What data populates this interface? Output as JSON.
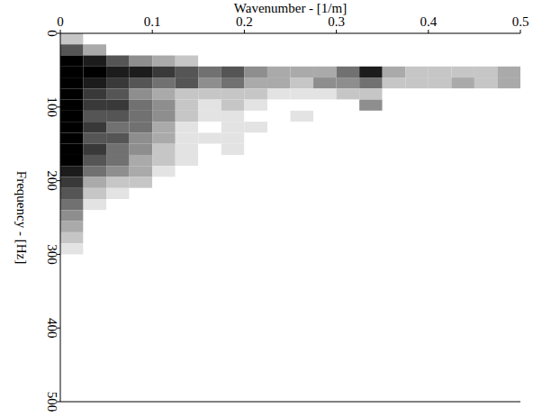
{
  "chart_data": {
    "type": "heatmap",
    "x_label": "Wavenumber - [1/m]",
    "y_label": "Frequency - [Hz]",
    "xlim": [
      0,
      0.5
    ],
    "ylim": [
      0,
      500
    ],
    "xticks": [
      0,
      0.1,
      0.2,
      0.3,
      0.4,
      0.5
    ],
    "yticks": [
      0,
      100,
      200,
      300,
      400,
      500
    ],
    "zlim": [
      0,
      9
    ],
    "x_edges": [
      0,
      0.025,
      0.05,
      0.075,
      0.1,
      0.125,
      0.15,
      0.175,
      0.2,
      0.225,
      0.25,
      0.275,
      0.3,
      0.325,
      0.35,
      0.375,
      0.4,
      0.425,
      0.45,
      0.475,
      0.5
    ],
    "y_edges": [
      0,
      15,
      30,
      45,
      60,
      75,
      90,
      105,
      120,
      135,
      150,
      165,
      180,
      195,
      210,
      225,
      240,
      255,
      270,
      285,
      300
    ],
    "z": [
      [
        2,
        0,
        0,
        0,
        0,
        0,
        0,
        0,
        0,
        0,
        0,
        0,
        0,
        0,
        0,
        0,
        0,
        0,
        0,
        0
      ],
      [
        6,
        3,
        0,
        0,
        0,
        0,
        0,
        0,
        0,
        0,
        0,
        0,
        0,
        0,
        0,
        0,
        0,
        0,
        0,
        0
      ],
      [
        9,
        8,
        6,
        4,
        3,
        2,
        0,
        0,
        0,
        0,
        0,
        0,
        0,
        0,
        0,
        0,
        0,
        0,
        0,
        0
      ],
      [
        9,
        9,
        8,
        8,
        7,
        6,
        5,
        6,
        4,
        3,
        3,
        3,
        5,
        8,
        3,
        2,
        2,
        2,
        2,
        3
      ],
      [
        9,
        8,
        7,
        6,
        5,
        6,
        4,
        5,
        3,
        3,
        2,
        4,
        4,
        5,
        2,
        2,
        2,
        3,
        2,
        3
      ],
      [
        9,
        7,
        6,
        4,
        3,
        2,
        2,
        2,
        2,
        1,
        1,
        1,
        2,
        2,
        0,
        0,
        0,
        0,
        0,
        0
      ],
      [
        9,
        7,
        7,
        5,
        4,
        2,
        1,
        2,
        1,
        0,
        0,
        0,
        0,
        4,
        0,
        0,
        0,
        0,
        0,
        0
      ],
      [
        9,
        6,
        6,
        5,
        4,
        2,
        1,
        1,
        0,
        0,
        1,
        0,
        0,
        0,
        0,
        0,
        0,
        0,
        0,
        0
      ],
      [
        9,
        7,
        5,
        5,
        3,
        1,
        0,
        1,
        1,
        0,
        0,
        0,
        0,
        0,
        0,
        0,
        0,
        0,
        0,
        0
      ],
      [
        9,
        6,
        6,
        4,
        3,
        1,
        1,
        1,
        0,
        0,
        0,
        0,
        0,
        0,
        0,
        0,
        0,
        0,
        0,
        0
      ],
      [
        9,
        7,
        5,
        4,
        2,
        1,
        0,
        1,
        0,
        0,
        0,
        0,
        0,
        0,
        0,
        0,
        0,
        0,
        0,
        0
      ],
      [
        9,
        6,
        5,
        3,
        2,
        1,
        0,
        0,
        0,
        0,
        0,
        0,
        0,
        0,
        0,
        0,
        0,
        0,
        0,
        0
      ],
      [
        8,
        5,
        4,
        3,
        1,
        0,
        0,
        0,
        0,
        0,
        0,
        0,
        0,
        0,
        0,
        0,
        0,
        0,
        0,
        0
      ],
      [
        7,
        3,
        2,
        2,
        0,
        0,
        0,
        0,
        0,
        0,
        0,
        0,
        0,
        0,
        0,
        0,
        0,
        0,
        0,
        0
      ],
      [
        6,
        2,
        1,
        0,
        0,
        0,
        0,
        0,
        0,
        0,
        0,
        0,
        0,
        0,
        0,
        0,
        0,
        0,
        0,
        0
      ],
      [
        5,
        1,
        0,
        0,
        0,
        0,
        0,
        0,
        0,
        0,
        0,
        0,
        0,
        0,
        0,
        0,
        0,
        0,
        0,
        0
      ],
      [
        4,
        0,
        0,
        0,
        0,
        0,
        0,
        0,
        0,
        0,
        0,
        0,
        0,
        0,
        0,
        0,
        0,
        0,
        0,
        0
      ],
      [
        3,
        0,
        0,
        0,
        0,
        0,
        0,
        0,
        0,
        0,
        0,
        0,
        0,
        0,
        0,
        0,
        0,
        0,
        0,
        0
      ],
      [
        2,
        0,
        0,
        0,
        0,
        0,
        0,
        0,
        0,
        0,
        0,
        0,
        0,
        0,
        0,
        0,
        0,
        0,
        0,
        0
      ],
      [
        1,
        0,
        0,
        0,
        0,
        0,
        0,
        0,
        0,
        0,
        0,
        0,
        0,
        0,
        0,
        0,
        0,
        0,
        0,
        0
      ]
    ]
  }
}
